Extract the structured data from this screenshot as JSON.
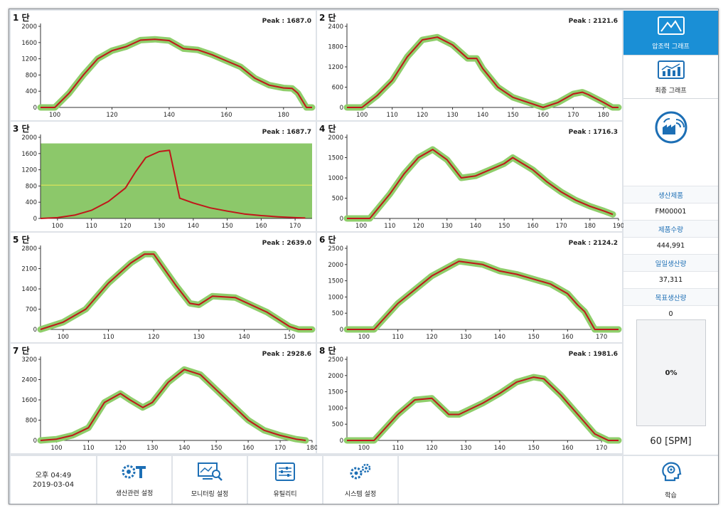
{
  "colors": {
    "accent": "#1a8fd6",
    "band": "#8fce6b",
    "line": "#c0161a",
    "zone": "#8cc86a"
  },
  "panels": [
    {
      "title": "1 단",
      "peak": "Peak : 1687.0"
    },
    {
      "title": "2 단",
      "peak": "Peak : 2121.6"
    },
    {
      "title": "3 단",
      "peak": "Peak : 1687.7"
    },
    {
      "title": "4 단",
      "peak": "Peak : 1716.3"
    },
    {
      "title": "5 단",
      "peak": "Peak : 2639.0"
    },
    {
      "title": "6 단",
      "peak": "Peak : 2124.2"
    },
    {
      "title": "7 단",
      "peak": "Peak : 2928.6"
    },
    {
      "title": "8 단",
      "peak": "Peak : 1981.6"
    }
  ],
  "chart_data": [
    {
      "type": "line",
      "title": "1 단",
      "xlim": [
        95,
        190
      ],
      "ylim": [
        0,
        2000
      ],
      "x_ticks": [
        100,
        120,
        140,
        160,
        180
      ],
      "y_ticks": [
        0,
        400,
        800,
        1200,
        1600,
        2000
      ],
      "x": [
        95,
        100,
        105,
        110,
        115,
        120,
        125,
        130,
        135,
        140,
        145,
        150,
        155,
        160,
        165,
        170,
        175,
        180,
        183,
        185,
        188,
        190
      ],
      "y": [
        0,
        0,
        350,
        800,
        1200,
        1400,
        1500,
        1660,
        1680,
        1650,
        1450,
        1420,
        1300,
        1150,
        1000,
        720,
        550,
        480,
        470,
        350,
        0,
        0
      ]
    },
    {
      "type": "line",
      "title": "2 단",
      "xlim": [
        95,
        185
      ],
      "ylim": [
        0,
        2400
      ],
      "x_ticks": [
        100,
        110,
        120,
        130,
        140,
        150,
        160,
        170,
        180
      ],
      "y_ticks": [
        0,
        600,
        1200,
        1800,
        2400
      ],
      "x": [
        95,
        100,
        105,
        110,
        115,
        120,
        125,
        130,
        135,
        138,
        140,
        145,
        150,
        155,
        160,
        165,
        170,
        173,
        175,
        180,
        183,
        185
      ],
      "y": [
        0,
        0,
        350,
        800,
        1500,
        2000,
        2080,
        1850,
        1450,
        1450,
        1150,
        600,
        300,
        150,
        0,
        150,
        400,
        450,
        380,
        150,
        0,
        0
      ]
    },
    {
      "type": "line",
      "title": "3 단",
      "xlim": [
        95,
        175
      ],
      "ylim": [
        0,
        2000
      ],
      "x_ticks": [
        100,
        110,
        120,
        130,
        140,
        150,
        160,
        170
      ],
      "y_ticks": [
        0,
        400,
        800,
        1200,
        1600,
        2000
      ],
      "x": [
        95,
        100,
        105,
        110,
        115,
        120,
        123,
        126,
        130,
        133,
        136,
        140,
        145,
        150,
        155,
        160,
        165,
        170,
        173
      ],
      "y": [
        0,
        20,
        80,
        200,
        420,
        750,
        1150,
        1500,
        1650,
        1680,
        500,
        380,
        260,
        180,
        110,
        70,
        40,
        20,
        10
      ],
      "zone": {
        "y_min": 0,
        "y_max": 1850,
        "mid": 820
      }
    },
    {
      "type": "line",
      "title": "4 단",
      "xlim": [
        95,
        190
      ],
      "ylim": [
        0,
        2000
      ],
      "x_ticks": [
        100,
        110,
        120,
        130,
        140,
        150,
        160,
        170,
        180,
        190
      ],
      "y_ticks": [
        0,
        500,
        1000,
        1500,
        2000
      ],
      "x": [
        95,
        100,
        103,
        110,
        115,
        120,
        125,
        130,
        135,
        140,
        145,
        150,
        153,
        160,
        165,
        170,
        175,
        180,
        185,
        188
      ],
      "y": [
        0,
        0,
        0,
        600,
        1100,
        1500,
        1700,
        1450,
        1000,
        1050,
        1200,
        1350,
        1500,
        1200,
        900,
        650,
        450,
        300,
        180,
        100
      ]
    },
    {
      "type": "line",
      "title": "5 단",
      "xlim": [
        95,
        155
      ],
      "ylim": [
        0,
        2800
      ],
      "x_ticks": [
        100,
        110,
        120,
        130,
        140,
        150
      ],
      "y_ticks": [
        0,
        700,
        1400,
        2100,
        2800
      ],
      "x": [
        95,
        100,
        105,
        110,
        115,
        118,
        120,
        125,
        128,
        130,
        133,
        138,
        145,
        150,
        152,
        155
      ],
      "y": [
        0,
        250,
        700,
        1600,
        2300,
        2600,
        2600,
        1500,
        900,
        850,
        1150,
        1100,
        600,
        100,
        0,
        0
      ]
    },
    {
      "type": "line",
      "title": "6 단",
      "xlim": [
        95,
        175
      ],
      "ylim": [
        0,
        2500
      ],
      "x_ticks": [
        100,
        110,
        120,
        130,
        140,
        150,
        160,
        170
      ],
      "y_ticks": [
        0,
        500,
        1000,
        1500,
        2000,
        2500
      ],
      "x": [
        95,
        100,
        103,
        110,
        120,
        128,
        135,
        140,
        145,
        150,
        155,
        160,
        163,
        165,
        168,
        172,
        175
      ],
      "y": [
        0,
        0,
        0,
        800,
        1650,
        2100,
        2000,
        1800,
        1700,
        1550,
        1400,
        1100,
        750,
        550,
        0,
        0,
        0
      ]
    },
    {
      "type": "line",
      "title": "7 단",
      "xlim": [
        95,
        180
      ],
      "ylim": [
        0,
        3200
      ],
      "x_ticks": [
        100,
        110,
        120,
        130,
        140,
        150,
        160,
        170,
        180
      ],
      "y_ticks": [
        0,
        800,
        1600,
        2400,
        3200
      ],
      "x": [
        95,
        100,
        105,
        110,
        115,
        120,
        123,
        127,
        130,
        135,
        140,
        145,
        150,
        155,
        160,
        165,
        170,
        175,
        178
      ],
      "y": [
        0,
        50,
        200,
        500,
        1500,
        1850,
        1600,
        1300,
        1500,
        2300,
        2800,
        2600,
        2000,
        1400,
        800,
        400,
        200,
        50,
        0
      ]
    },
    {
      "type": "line",
      "title": "8 단",
      "xlim": [
        95,
        175
      ],
      "ylim": [
        0,
        2500
      ],
      "x_ticks": [
        100,
        110,
        120,
        130,
        140,
        150,
        160,
        170
      ],
      "y_ticks": [
        0,
        500,
        1000,
        1500,
        2000,
        2500
      ],
      "x": [
        95,
        100,
        103,
        110,
        115,
        120,
        125,
        128,
        135,
        140,
        145,
        150,
        153,
        158,
        163,
        168,
        172,
        175
      ],
      "y": [
        0,
        0,
        0,
        800,
        1250,
        1300,
        800,
        800,
        1150,
        1450,
        1800,
        1950,
        1900,
        1400,
        800,
        200,
        0,
        0
      ]
    }
  ],
  "sidebar": {
    "nav_graph_label": "압조력 그래프",
    "nav_trend_label": "최종 그래프",
    "product_label": "생산제품",
    "product_value": "FM00001",
    "qty_label": "제품수량",
    "qty_value": "444,991",
    "daily_label": "일일생산량",
    "daily_value": "37,311",
    "target_label": "목표생산량",
    "target_value": "0",
    "progress": "0%",
    "spm": "60 [SPM]"
  },
  "bottom": {
    "time": "오후 04:49",
    "date": "2019-03-04",
    "btn_production": "생산관련 설정",
    "btn_monitoring": "모니터링 설정",
    "btn_utility": "유틸리티",
    "btn_system": "시스템 설정",
    "btn_learn": "학습"
  }
}
